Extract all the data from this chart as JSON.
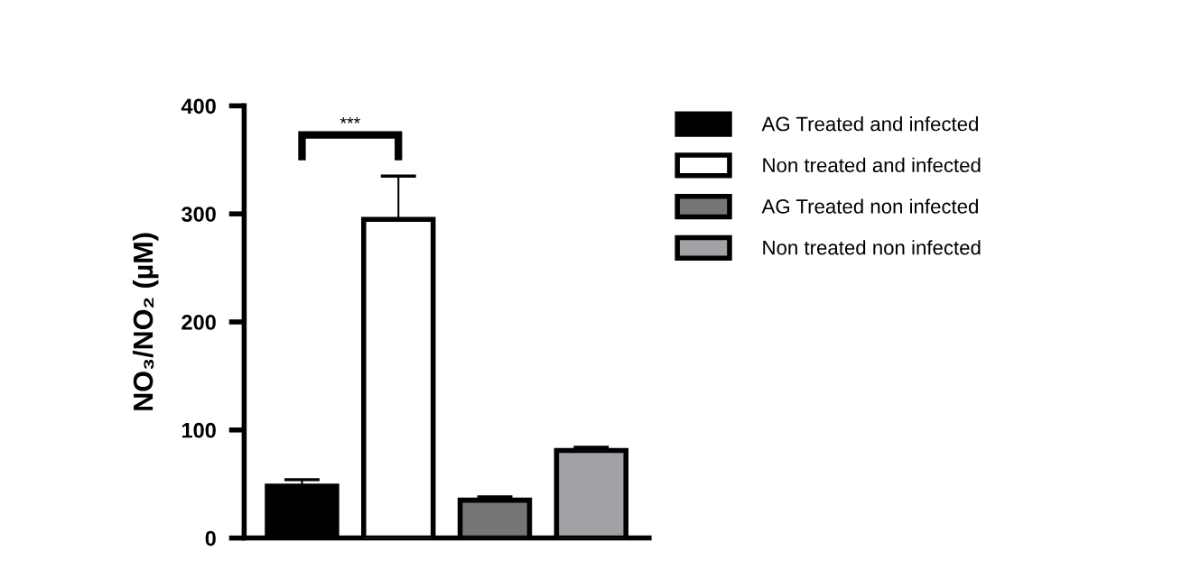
{
  "chart_data": {
    "type": "bar",
    "ylabel": "NO₃/NO₂ (µM)",
    "categories": [
      null,
      null,
      null,
      null
    ],
    "series": [
      {
        "name": "AG Treated and infected",
        "color": "#000000",
        "values": [
          48,
          null,
          null,
          null
        ],
        "errors": [
          [
            48,
            54
          ],
          null,
          null,
          null
        ]
      },
      {
        "name": "Non treated and infected",
        "color": "#ffffff",
        "values": [
          null,
          295,
          null,
          null
        ],
        "errors": [
          null,
          [
            295,
            335
          ],
          null,
          null
        ]
      },
      {
        "name": "AG Treated non infected",
        "color": "#767676",
        "values": [
          null,
          null,
          35,
          null
        ],
        "errors": [
          null,
          null,
          [
            35,
            38
          ],
          null
        ]
      },
      {
        "name": "Non treated non infected",
        "color": "#a2a1a6",
        "values": [
          null,
          null,
          null,
          81
        ],
        "errors": [
          null,
          null,
          null,
          [
            81,
            84
          ]
        ]
      }
    ],
    "ylim": [
      0,
      400
    ],
    "yticks": [
      0,
      100,
      200,
      300,
      400
    ],
    "tick_labels": "y",
    "grid": false,
    "legend": "top right",
    "annotations": [
      "***"
    ]
  }
}
